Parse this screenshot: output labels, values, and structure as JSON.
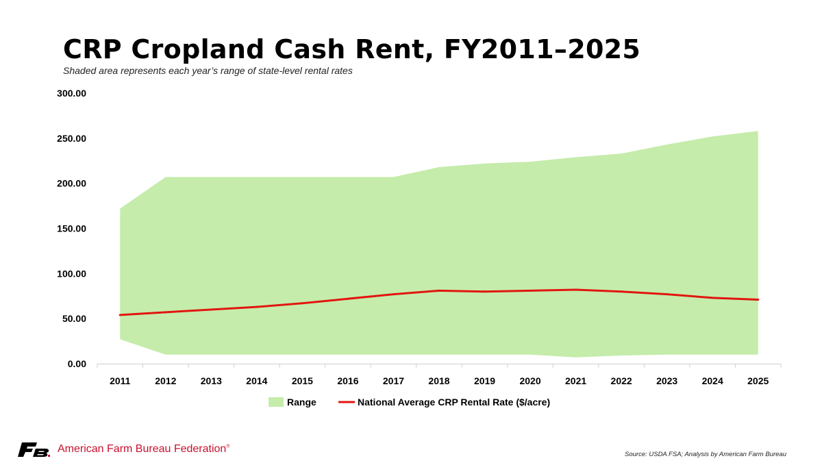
{
  "header": {
    "title": "CRP Cropland Cash Rent, FY2011–2025",
    "subtitle": "Shaded area represents each year’s range of state-level rental rates"
  },
  "footer": {
    "brand": "American Farm Bureau Federation",
    "source": "Source: USDA FSA; Analysis by American Farm Bureau"
  },
  "colors": {
    "range_fill": "#c5ecaa",
    "line": "#e2150f",
    "axis": "#d0d0d0",
    "brand": "#c8102e"
  },
  "chart_data": {
    "type": "area",
    "x": [
      "2011",
      "2012",
      "2013",
      "2014",
      "2015",
      "2016",
      "2017",
      "2018",
      "2019",
      "2020",
      "2021",
      "2022",
      "2023",
      "2024",
      "2025"
    ],
    "ylim": [
      0,
      300
    ],
    "yticks": [
      "0.00",
      "50.00",
      "100.00",
      "150.00",
      "200.00",
      "250.00",
      "300.00"
    ],
    "grid": false,
    "legend_position": "bottom",
    "series": [
      {
        "name": "Range",
        "kind": "range-area",
        "low": [
          27,
          10,
          10,
          10,
          10,
          10,
          10,
          10,
          10,
          10,
          7,
          9,
          10,
          10,
          10
        ],
        "high": [
          172,
          207,
          207,
          207,
          207,
          207,
          207,
          218,
          222,
          224,
          229,
          233,
          243,
          252,
          258
        ]
      },
      {
        "name": "National Average CRP Rental Rate ($/acre)",
        "kind": "line",
        "values": [
          54,
          57,
          60,
          63,
          67,
          72,
          77,
          81,
          80,
          81,
          82,
          80,
          77,
          73,
          71
        ]
      }
    ]
  }
}
